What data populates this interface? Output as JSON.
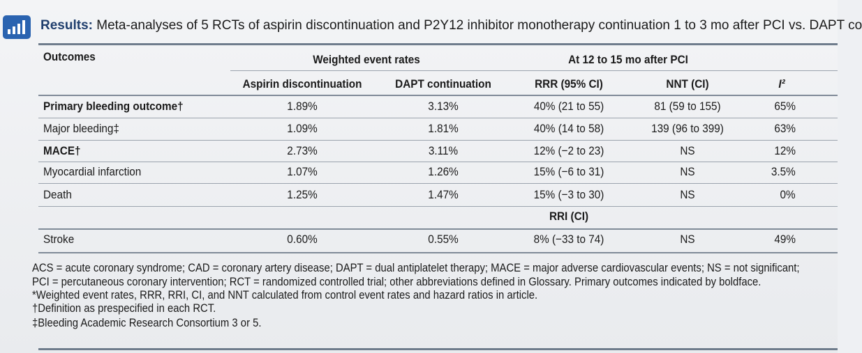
{
  "header": {
    "label": "Results:",
    "title": "Meta-analyses of 5 RCTs of aspirin discontinuation and P2Y12 inhibitor monotherapy continuation 1 to 3 mo after PCI vs. DAPT co"
  },
  "table": {
    "group_headers": [
      "Outcomes",
      "Weighted event rates",
      "At 12 to 15 mo after PCI"
    ],
    "columns": [
      "Aspirin discontinuation",
      "DAPT continuation",
      "RRR (95% CI)",
      "NNT (CI)",
      "I²"
    ],
    "rows": [
      {
        "cells": [
          "Primary bleeding outcome†",
          "1.89%",
          "3.13%",
          "40% (21 to 55)",
          "81 (59 to 155)",
          "65%"
        ],
        "bold": true
      },
      {
        "cells": [
          "Major bleeding‡",
          "1.09%",
          "1.81%",
          "40% (14 to 58)",
          "139 (96 to 399)",
          "63%"
        ],
        "bold": false
      },
      {
        "cells": [
          "MACE†",
          "2.73%",
          "3.11%",
          "12% (−2 to 23)",
          "NS",
          "12%"
        ],
        "bold": true
      },
      {
        "cells": [
          "Myocardial infarction",
          "1.07%",
          "1.26%",
          "15% (−6 to 31)",
          "NS",
          "3.5%"
        ],
        "bold": false
      },
      {
        "cells": [
          "Death",
          "1.25%",
          "1.47%",
          "15% (−3 to 30)",
          "NS",
          "0%"
        ],
        "bold": false
      },
      {
        "cells": [
          "Stroke",
          "0.60%",
          "0.55%",
          "8% (−33 to 74)",
          "NS",
          "49%"
        ],
        "bold": false
      }
    ],
    "subheader": "RRI (CI)"
  },
  "footnotes": [
    "ACS = acute coronary syndrome; CAD = coronary artery disease; DAPT = dual antiplatelet therapy; MACE = major adverse cardiovascular events; NS = not significant;",
    "PCI = percutaneous coronary intervention; RCT = randomized controlled trial; other abbreviations defined in Glossary. Primary outcomes indicated by boldface.",
    "*Weighted event rates, RRR, RRI, CI, and NNT calculated from control event rates and hazard ratios in article.",
    "†Definition as prespecified in each RCT.",
    "‡Bleeding Academic Research Consortium 3 or 5."
  ]
}
